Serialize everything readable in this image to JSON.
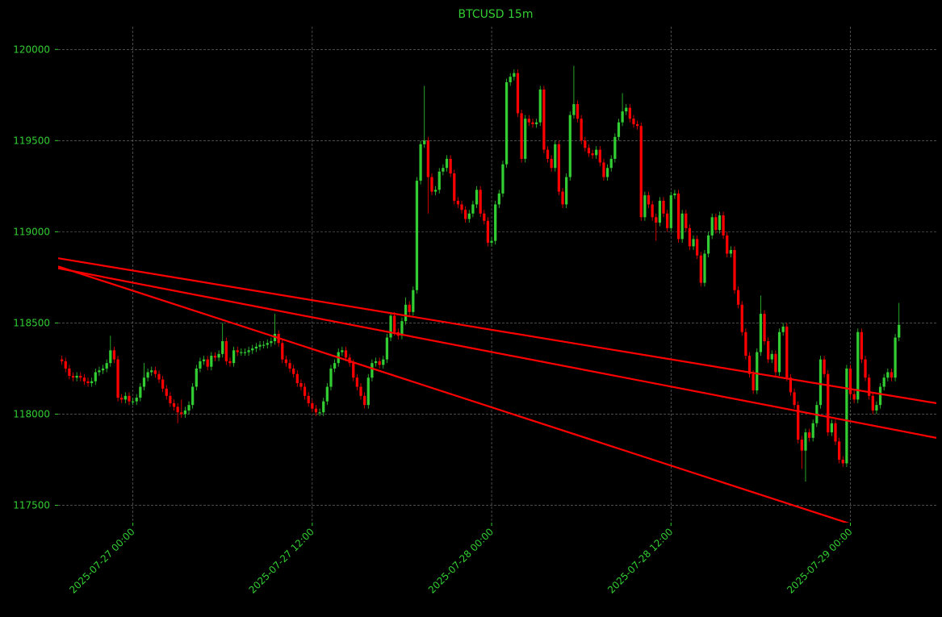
{
  "chart_data": {
    "type": "candlestick",
    "title": "BTCUSD 15m",
    "text_color": "#32cd32",
    "background": "#000000",
    "up_color": "#32cd32",
    "down_color": "#ff0000",
    "grid": true,
    "xlim": [
      "2025-07-26 19:00",
      "2025-07-29 05:45"
    ],
    "xticks": [
      "2025-07-27 00:00",
      "2025-07-27 12:00",
      "2025-07-28 00:00",
      "2025-07-28 12:00",
      "2025-07-29 00:00"
    ],
    "ylim": [
      117405,
      120125
    ],
    "yticks": [
      117500,
      118000,
      118500,
      119000,
      119500,
      120000
    ],
    "x": [
      "2025-07-26 19:15",
      "2025-07-26 19:30",
      "2025-07-26 19:45",
      "2025-07-26 20:00",
      "2025-07-26 20:15",
      "2025-07-26 20:30",
      "2025-07-26 20:45",
      "2025-07-26 21:00",
      "2025-07-26 21:15",
      "2025-07-26 21:30",
      "2025-07-26 21:45",
      "2025-07-26 22:00",
      "2025-07-26 22:15",
      "2025-07-26 22:30",
      "2025-07-26 22:45",
      "2025-07-26 23:00",
      "2025-07-26 23:15",
      "2025-07-26 23:30",
      "2025-07-26 23:45",
      "2025-07-27 00:00",
      "2025-07-27 00:15",
      "2025-07-27 00:30",
      "2025-07-27 00:45",
      "2025-07-27 01:00",
      "2025-07-27 01:15",
      "2025-07-27 01:30",
      "2025-07-27 01:45",
      "2025-07-27 02:00",
      "2025-07-27 02:15",
      "2025-07-27 02:30",
      "2025-07-27 02:45",
      "2025-07-27 03:00",
      "2025-07-27 03:15",
      "2025-07-27 03:30",
      "2025-07-27 03:45",
      "2025-07-27 04:00",
      "2025-07-27 04:15",
      "2025-07-27 04:30",
      "2025-07-27 04:45",
      "2025-07-27 05:00",
      "2025-07-27 05:15",
      "2025-07-27 05:30",
      "2025-07-27 05:45",
      "2025-07-27 06:00",
      "2025-07-27 06:15",
      "2025-07-27 06:30",
      "2025-07-27 06:45",
      "2025-07-27 07:00",
      "2025-07-27 07:15",
      "2025-07-27 07:30",
      "2025-07-27 07:45",
      "2025-07-27 08:00",
      "2025-07-27 08:15",
      "2025-07-27 08:30",
      "2025-07-27 08:45",
      "2025-07-27 09:00",
      "2025-07-27 09:15",
      "2025-07-27 09:30",
      "2025-07-27 09:45",
      "2025-07-27 10:00",
      "2025-07-27 10:15",
      "2025-07-27 10:30",
      "2025-07-27 10:45",
      "2025-07-27 11:00",
      "2025-07-27 11:15",
      "2025-07-27 11:30",
      "2025-07-27 11:45",
      "2025-07-27 12:00",
      "2025-07-27 12:15",
      "2025-07-27 12:30",
      "2025-07-27 12:45",
      "2025-07-27 13:00",
      "2025-07-27 13:15",
      "2025-07-27 13:30",
      "2025-07-27 13:45",
      "2025-07-27 14:00",
      "2025-07-27 14:15",
      "2025-07-27 14:30",
      "2025-07-27 14:45",
      "2025-07-27 15:00",
      "2025-07-27 15:15",
      "2025-07-27 15:30",
      "2025-07-27 15:45",
      "2025-07-27 16:00",
      "2025-07-27 16:15",
      "2025-07-27 16:30",
      "2025-07-27 16:45",
      "2025-07-27 17:00",
      "2025-07-27 17:15",
      "2025-07-27 17:30",
      "2025-07-27 17:45",
      "2025-07-27 18:00",
      "2025-07-27 18:15",
      "2025-07-27 18:30",
      "2025-07-27 18:45",
      "2025-07-27 19:00",
      "2025-07-27 19:15",
      "2025-07-27 19:30",
      "2025-07-27 19:45",
      "2025-07-27 20:00",
      "2025-07-27 20:15",
      "2025-07-27 20:30",
      "2025-07-27 20:45",
      "2025-07-27 21:00",
      "2025-07-27 21:15",
      "2025-07-27 21:30",
      "2025-07-27 21:45",
      "2025-07-27 22:00",
      "2025-07-27 22:15",
      "2025-07-27 22:30",
      "2025-07-27 22:45",
      "2025-07-27 23:00",
      "2025-07-27 23:15",
      "2025-07-27 23:30",
      "2025-07-27 23:45",
      "2025-07-28 00:00",
      "2025-07-28 00:15",
      "2025-07-28 00:30",
      "2025-07-28 00:45",
      "2025-07-28 01:00",
      "2025-07-28 01:15",
      "2025-07-28 01:30",
      "2025-07-28 01:45",
      "2025-07-28 02:00",
      "2025-07-28 02:15",
      "2025-07-28 02:30",
      "2025-07-28 02:45",
      "2025-07-28 03:00",
      "2025-07-28 03:15",
      "2025-07-28 03:30",
      "2025-07-28 03:45",
      "2025-07-28 04:00",
      "2025-07-28 04:15",
      "2025-07-28 04:30",
      "2025-07-28 04:45",
      "2025-07-28 05:00",
      "2025-07-28 05:15",
      "2025-07-28 05:30",
      "2025-07-28 05:45",
      "2025-07-28 06:00",
      "2025-07-28 06:15",
      "2025-07-28 06:30",
      "2025-07-28 06:45",
      "2025-07-28 07:00",
      "2025-07-28 07:15",
      "2025-07-28 07:30",
      "2025-07-28 07:45",
      "2025-07-28 08:00",
      "2025-07-28 08:15",
      "2025-07-28 08:30",
      "2025-07-28 08:45",
      "2025-07-28 09:00",
      "2025-07-28 09:15",
      "2025-07-28 09:30",
      "2025-07-28 09:45",
      "2025-07-28 10:00",
      "2025-07-28 10:15",
      "2025-07-28 10:30",
      "2025-07-28 10:45",
      "2025-07-28 11:00",
      "2025-07-28 11:15",
      "2025-07-28 11:30",
      "2025-07-28 11:45",
      "2025-07-28 12:00",
      "2025-07-28 12:15",
      "2025-07-28 12:30",
      "2025-07-28 12:45",
      "2025-07-28 13:00",
      "2025-07-28 13:15",
      "2025-07-28 13:30",
      "2025-07-28 13:45",
      "2025-07-28 14:00",
      "2025-07-28 14:15",
      "2025-07-28 14:30",
      "2025-07-28 14:45",
      "2025-07-28 15:00",
      "2025-07-28 15:15",
      "2025-07-28 15:30",
      "2025-07-28 15:45",
      "2025-07-28 16:00",
      "2025-07-28 16:15",
      "2025-07-28 16:30",
      "2025-07-28 16:45",
      "2025-07-28 17:00",
      "2025-07-28 17:15",
      "2025-07-28 17:30",
      "2025-07-28 17:45",
      "2025-07-28 18:00",
      "2025-07-28 18:15",
      "2025-07-28 18:30",
      "2025-07-28 18:45",
      "2025-07-28 19:00",
      "2025-07-28 19:15",
      "2025-07-28 19:30",
      "2025-07-28 19:45",
      "2025-07-28 20:00",
      "2025-07-28 20:15",
      "2025-07-28 20:30",
      "2025-07-28 20:45",
      "2025-07-28 21:00",
      "2025-07-28 21:15",
      "2025-07-28 21:30",
      "2025-07-28 21:45",
      "2025-07-28 22:00",
      "2025-07-28 22:15",
      "2025-07-28 22:30",
      "2025-07-28 22:45",
      "2025-07-28 23:00",
      "2025-07-28 23:15",
      "2025-07-28 23:30",
      "2025-07-28 23:45",
      "2025-07-29 00:00",
      "2025-07-29 00:15",
      "2025-07-29 00:30",
      "2025-07-29 00:45",
      "2025-07-29 01:00",
      "2025-07-29 01:15",
      "2025-07-29 01:30",
      "2025-07-29 01:45",
      "2025-07-29 02:00",
      "2025-07-29 02:15",
      "2025-07-29 02:30",
      "2025-07-29 02:45",
      "2025-07-29 03:00",
      "2025-07-29 03:15"
    ],
    "open": [
      118300,
      118290,
      118250,
      118210,
      118200,
      118210,
      118200,
      118180,
      118170,
      118180,
      118230,
      118240,
      118250,
      118280,
      118350,
      118300,
      118090,
      118080,
      118100,
      118070,
      118070,
      118090,
      118150,
      118200,
      118230,
      118240,
      118220,
      118190,
      118140,
      118100,
      118060,
      118040,
      118010,
      118000,
      118020,
      118050,
      118150,
      118250,
      118290,
      118300,
      118260,
      118320,
      118310,
      118330,
      118400,
      118290,
      118280,
      118350,
      118340,
      118340,
      118340,
      118350,
      118360,
      118370,
      118380,
      118380,
      118390,
      118400,
      118440,
      118390,
      118300,
      118280,
      118250,
      118220,
      118170,
      118150,
      118100,
      118060,
      118030,
      118010,
      118010,
      118070,
      118150,
      118250,
      118280,
      118340,
      118350,
      118310,
      118280,
      118200,
      118150,
      118100,
      118050,
      118200,
      118280,
      118290,
      118270,
      118300,
      118420,
      118540,
      118450,
      118430,
      118510,
      118600,
      118560,
      118680,
      119280,
      119480,
      119500,
      119300,
      119220,
      119230,
      119330,
      119350,
      119400,
      119320,
      119170,
      119150,
      119120,
      119070,
      119100,
      119150,
      119230,
      119100,
      119060,
      118940,
      118950,
      119150,
      119210,
      119370,
      119820,
      119850,
      119870,
      119650,
      119400,
      119620,
      119600,
      119590,
      119600,
      119780,
      119450,
      119400,
      119350,
      119480,
      119220,
      119150,
      119300,
      119640,
      119700,
      119620,
      119500,
      119460,
      119430,
      119420,
      119450,
      119380,
      119300,
      119350,
      119400,
      119520,
      119600,
      119660,
      119680,
      119620,
      119590,
      119580,
      119080,
      119200,
      119150,
      119080,
      119050,
      119170,
      119100,
      119020,
      119200,
      119210,
      118960,
      119100,
      119020,
      118920,
      118960,
      118870,
      118720,
      118880,
      118980,
      119080,
      119010,
      119090,
      118980,
      118880,
      118900,
      118680,
      118600,
      118450,
      118320,
      118220,
      118130,
      118340,
      118550,
      118400,
      118300,
      118330,
      118230,
      118450,
      118480,
      118200,
      118120,
      118050,
      117860,
      117800,
      117900,
      117870,
      117950,
      118050,
      118300,
      118220,
      117900,
      117950,
      117850,
      117750,
      117730,
      118250,
      118110,
      118080,
      118450,
      118300,
      118200,
      118100,
      118020,
      118050,
      118150,
      118200,
      118230,
      118200,
      118420
    ],
    "high": [
      118320,
      118310,
      118270,
      118230,
      118230,
      118230,
      118220,
      118200,
      118200,
      118250,
      118260,
      118270,
      118300,
      118430,
      118370,
      118320,
      118110,
      118120,
      118120,
      118090,
      118110,
      118170,
      118280,
      118250,
      118260,
      118260,
      118240,
      118210,
      118160,
      118120,
      118080,
      118060,
      118080,
      118040,
      118070,
      118170,
      118270,
      118310,
      118320,
      118320,
      118340,
      118340,
      118350,
      118500,
      118420,
      118310,
      118370,
      118370,
      118360,
      118360,
      118370,
      118380,
      118390,
      118400,
      118400,
      118410,
      118420,
      118550,
      118460,
      118410,
      118320,
      118300,
      118270,
      118240,
      118190,
      118170,
      118120,
      118080,
      118050,
      118030,
      118090,
      118170,
      118270,
      118300,
      118360,
      118370,
      118370,
      118330,
      118300,
      118220,
      118170,
      118120,
      118220,
      118300,
      118310,
      118310,
      118320,
      118440,
      118560,
      118560,
      118470,
      118530,
      118640,
      118620,
      118700,
      119300,
      119500,
      119800,
      119520,
      119320,
      119250,
      119350,
      119370,
      119420,
      119420,
      119340,
      119190,
      119170,
      119140,
      119120,
      119170,
      119250,
      119250,
      119120,
      119080,
      118970,
      119170,
      119230,
      119390,
      119840,
      119870,
      119890,
      119890,
      119670,
      119640,
      119640,
      119620,
      119620,
      119800,
      119800,
      119470,
      119420,
      119500,
      119500,
      119240,
      119320,
      119660,
      119910,
      119720,
      119640,
      119520,
      119480,
      119450,
      119470,
      119470,
      119400,
      119370,
      119420,
      119540,
      119620,
      119760,
      119700,
      119700,
      119640,
      119610,
      119600,
      119220,
      119220,
      119170,
      119100,
      119190,
      119190,
      119120,
      119220,
      119230,
      119230,
      119120,
      119120,
      119040,
      118980,
      118980,
      118890,
      118900,
      119000,
      119100,
      119100,
      119110,
      119110,
      119000,
      118920,
      118920,
      118700,
      118620,
      118470,
      118340,
      118240,
      118360,
      118650,
      118570,
      118420,
      118350,
      118350,
      118470,
      118500,
      118500,
      118220,
      118140,
      118070,
      117880,
      117920,
      117920,
      117970,
      118070,
      118320,
      118320,
      118240,
      117970,
      117970,
      117870,
      117770,
      118270,
      118270,
      118130,
      118470,
      118470,
      118320,
      118220,
      118120,
      118070,
      118170,
      118220,
      118250,
      118250,
      118440,
      118610
    ],
    "low": [
      118270,
      118230,
      118190,
      118180,
      118180,
      118180,
      118160,
      118150,
      118150,
      118160,
      118210,
      118220,
      118230,
      118260,
      118280,
      118070,
      118060,
      118060,
      118050,
      118050,
      118050,
      118070,
      118130,
      118180,
      118210,
      118200,
      118170,
      118120,
      118080,
      118040,
      118020,
      117950,
      117980,
      117980,
      118000,
      118030,
      118130,
      118230,
      118270,
      118240,
      118240,
      118290,
      118290,
      118310,
      118270,
      118260,
      118260,
      118320,
      118320,
      118320,
      118320,
      118330,
      118340,
      118350,
      118360,
      118360,
      118370,
      118380,
      118370,
      118280,
      118260,
      118230,
      118200,
      118150,
      118130,
      118080,
      118040,
      118010,
      117990,
      117990,
      117990,
      118050,
      118130,
      118230,
      118260,
      118320,
      118290,
      118260,
      118180,
      118130,
      118080,
      118030,
      118030,
      118180,
      118260,
      118250,
      118250,
      118280,
      118400,
      118430,
      118410,
      118410,
      118490,
      118540,
      118540,
      118660,
      119260,
      119460,
      119100,
      119200,
      119200,
      119210,
      119310,
      119330,
      119300,
      119150,
      119130,
      119100,
      119050,
      119050,
      119080,
      119130,
      119080,
      119040,
      118920,
      118920,
      118930,
      119130,
      119190,
      119350,
      119800,
      119830,
      119630,
      119380,
      119380,
      119580,
      119570,
      119570,
      119580,
      119430,
      119380,
      119330,
      119330,
      119200,
      119130,
      119130,
      119280,
      119620,
      119600,
      119480,
      119440,
      119410,
      119400,
      119400,
      119360,
      119280,
      119280,
      119330,
      119380,
      119500,
      119580,
      119640,
      119600,
      119570,
      119560,
      119060,
      119060,
      119130,
      119060,
      118950,
      119030,
      119080,
      119000,
      119000,
      119180,
      118940,
      118940,
      119000,
      118900,
      118900,
      118850,
      118700,
      118700,
      118860,
      118960,
      118990,
      118990,
      118960,
      118860,
      118860,
      118660,
      118580,
      118430,
      118300,
      118200,
      118110,
      118110,
      118320,
      118380,
      118280,
      118280,
      118210,
      118210,
      118430,
      118180,
      118100,
      118030,
      117840,
      117700,
      117630,
      117850,
      117850,
      117930,
      118030,
      118200,
      117880,
      117880,
      117830,
      117730,
      117710,
      117710,
      118090,
      118060,
      118060,
      118280,
      118180,
      118080,
      118000,
      118000,
      118030,
      118130,
      118180,
      118180,
      118180,
      118400
    ],
    "close": [
      118290,
      118250,
      118210,
      118200,
      118210,
      118200,
      118180,
      118170,
      118180,
      118230,
      118240,
      118250,
      118280,
      118350,
      118300,
      118090,
      118080,
      118100,
      118070,
      118070,
      118090,
      118150,
      118200,
      118230,
      118240,
      118220,
      118190,
      118140,
      118100,
      118060,
      118040,
      118010,
      118000,
      118020,
      118050,
      118150,
      118250,
      118290,
      118300,
      118260,
      118320,
      118310,
      118330,
      118400,
      118290,
      118280,
      118350,
      118340,
      118340,
      118340,
      118350,
      118360,
      118370,
      118380,
      118380,
      118390,
      118400,
      118440,
      118390,
      118300,
      118280,
      118250,
      118220,
      118170,
      118150,
      118100,
      118060,
      118030,
      118010,
      118010,
      118070,
      118150,
      118250,
      118280,
      118340,
      118350,
      118310,
      118280,
      118200,
      118150,
      118100,
      118050,
      118200,
      118280,
      118290,
      118270,
      118300,
      118420,
      118540,
      118450,
      118430,
      118510,
      118600,
      118560,
      118680,
      119280,
      119480,
      119500,
      119300,
      119220,
      119230,
      119330,
      119350,
      119400,
      119320,
      119170,
      119150,
      119120,
      119070,
      119100,
      119150,
      119230,
      119100,
      119060,
      118940,
      118950,
      119150,
      119210,
      119370,
      119820,
      119850,
      119870,
      119650,
      119400,
      119620,
      119600,
      119590,
      119600,
      119780,
      119450,
      119400,
      119350,
      119480,
      119220,
      119150,
      119300,
      119640,
      119700,
      119620,
      119500,
      119460,
      119430,
      119420,
      119450,
      119380,
      119300,
      119350,
      119400,
      119520,
      119600,
      119660,
      119680,
      119620,
      119590,
      119580,
      119080,
      119200,
      119150,
      119080,
      119050,
      119170,
      119100,
      119020,
      119200,
      119210,
      118960,
      119100,
      119020,
      118920,
      118960,
      118870,
      118720,
      118880,
      118980,
      119080,
      119010,
      119090,
      118980,
      118880,
      118900,
      118680,
      118600,
      118450,
      118320,
      118220,
      118130,
      118340,
      118550,
      118400,
      118300,
      118330,
      118230,
      118450,
      118480,
      118200,
      118120,
      118050,
      117860,
      117800,
      117900,
      117870,
      117950,
      118050,
      118300,
      118220,
      117900,
      117950,
      117850,
      117750,
      117730,
      118250,
      118110,
      118080,
      118450,
      118300,
      118200,
      118100,
      118020,
      118050,
      118150,
      118200,
      118230,
      118200,
      118420,
      118490
    ],
    "trendlines": [
      {
        "color": "#ff0000",
        "x": [
          "2025-07-26 19:00",
          "2025-07-29 05:45"
        ],
        "values": [
          118855,
          118060
        ]
      },
      {
        "color": "#ff0000",
        "x": [
          "2025-07-26 19:00",
          "2025-07-29 05:45"
        ],
        "values": [
          118800,
          117870
        ]
      },
      {
        "color": "#ff0000",
        "x": [
          "2025-07-26 19:00",
          "2025-07-29 05:45"
        ],
        "values": [
          118810,
          117245
        ]
      }
    ]
  }
}
